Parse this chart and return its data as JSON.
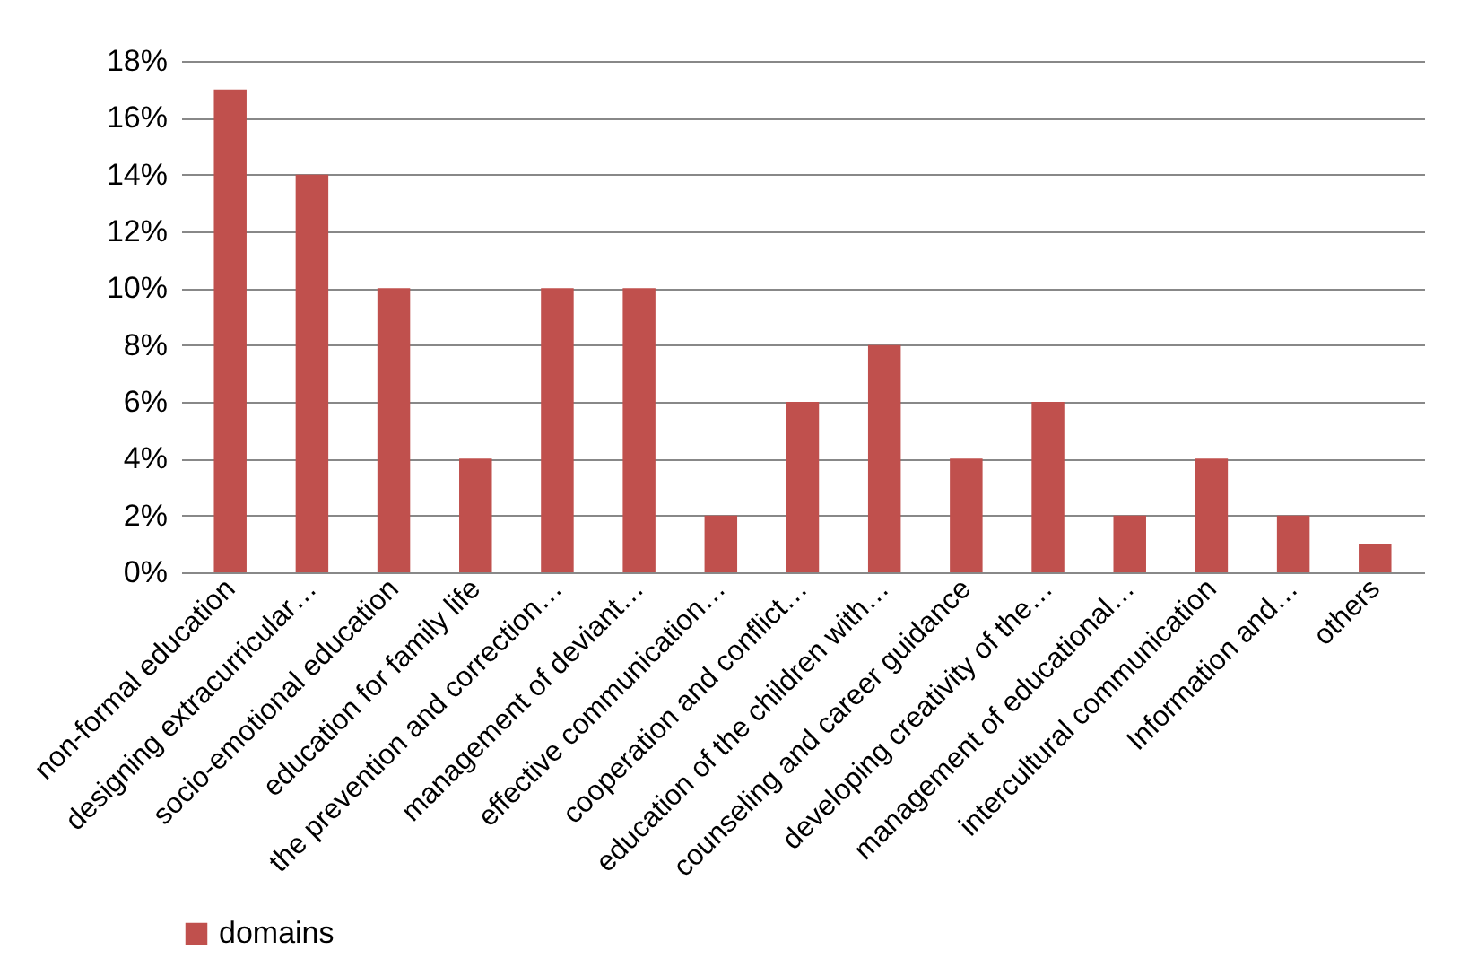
{
  "chart_data": {
    "type": "bar",
    "categories": [
      "non-formal education",
      "designing extracurricular…",
      "socio-emotional education",
      "education for family life",
      "the prevention and correction…",
      "management of deviant…",
      "effective communication…",
      "cooperation and conflict…",
      "education of the children with…",
      "counseling and career guidance",
      "developing creativity of the…",
      "management of educational…",
      "intercultural communication",
      "Information and…",
      "others"
    ],
    "series": [
      {
        "name": "domains",
        "color": "#c0504d",
        "values": [
          17,
          14,
          10,
          4,
          10,
          10,
          2,
          6,
          8,
          4,
          6,
          2,
          4,
          2,
          1
        ]
      }
    ],
    "ylim": [
      0,
      18
    ],
    "yticks": [
      {
        "value": 0,
        "label": "0%"
      },
      {
        "value": 2,
        "label": "2%"
      },
      {
        "value": 4,
        "label": "4%"
      },
      {
        "value": 6,
        "label": "6%"
      },
      {
        "value": 8,
        "label": "8%"
      },
      {
        "value": 10,
        "label": "10%"
      },
      {
        "value": 12,
        "label": "12%"
      },
      {
        "value": 14,
        "label": "14%"
      },
      {
        "value": 16,
        "label": "16%"
      },
      {
        "value": 18,
        "label": "18%"
      }
    ],
    "grid": "y",
    "legend": "bottom"
  }
}
